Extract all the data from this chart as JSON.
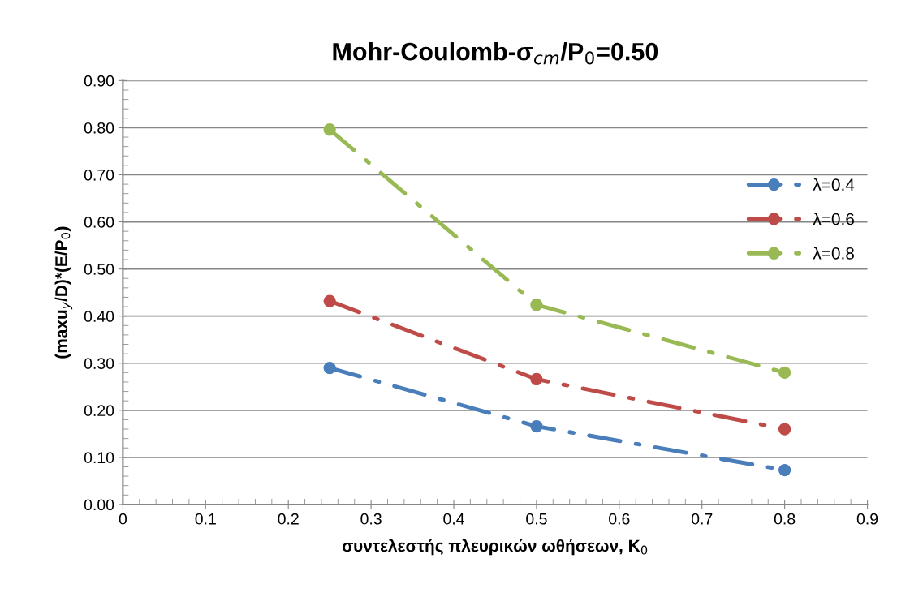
{
  "chart_data": {
    "type": "line",
    "title": "Mohr-Coulomb-σ$_{cm}$/P$_{0}$=0.50",
    "xlabel": "συντελεστής πλευρικών ωθήσεων, K$_{0}$",
    "ylabel": "(maxu$_{y}$/D)*(E/P$_{0}$)",
    "x": [
      0.25,
      0.5,
      0.8
    ],
    "series": [
      {
        "name": "λ=0.4",
        "color": "#4a7ebb",
        "values": [
          0.29,
          0.166,
          0.073
        ]
      },
      {
        "name": "λ=0.6",
        "color": "#be4b48",
        "values": [
          0.432,
          0.266,
          0.16
        ]
      },
      {
        "name": "λ=0.8",
        "color": "#98b954",
        "values": [
          0.796,
          0.424,
          0.28
        ]
      }
    ],
    "xlim": [
      0,
      0.9
    ],
    "xticks": [
      0,
      0.1,
      0.2,
      0.3,
      0.4,
      0.5,
      0.6,
      0.7,
      0.8,
      0.9
    ],
    "ylim": [
      0,
      0.9
    ],
    "yticks": [
      {
        "value": 0,
        "label": "0.00"
      },
      {
        "value": 0.1,
        "label": "0.10"
      },
      {
        "value": 0.2,
        "label": "0.20"
      },
      {
        "value": 0.3,
        "label": "0.30"
      },
      {
        "value": 0.4,
        "label": "0.40"
      },
      {
        "value": 0.5,
        "label": "0.50"
      },
      {
        "value": 0.6,
        "label": "0.60"
      },
      {
        "value": 0.7,
        "label": "0.70"
      },
      {
        "value": 0.8,
        "label": "0.80"
      },
      {
        "value": 0.9,
        "label": "0.90"
      }
    ],
    "grid": "y",
    "legend": "right",
    "marker": "circle",
    "line_style": "dashdot"
  }
}
